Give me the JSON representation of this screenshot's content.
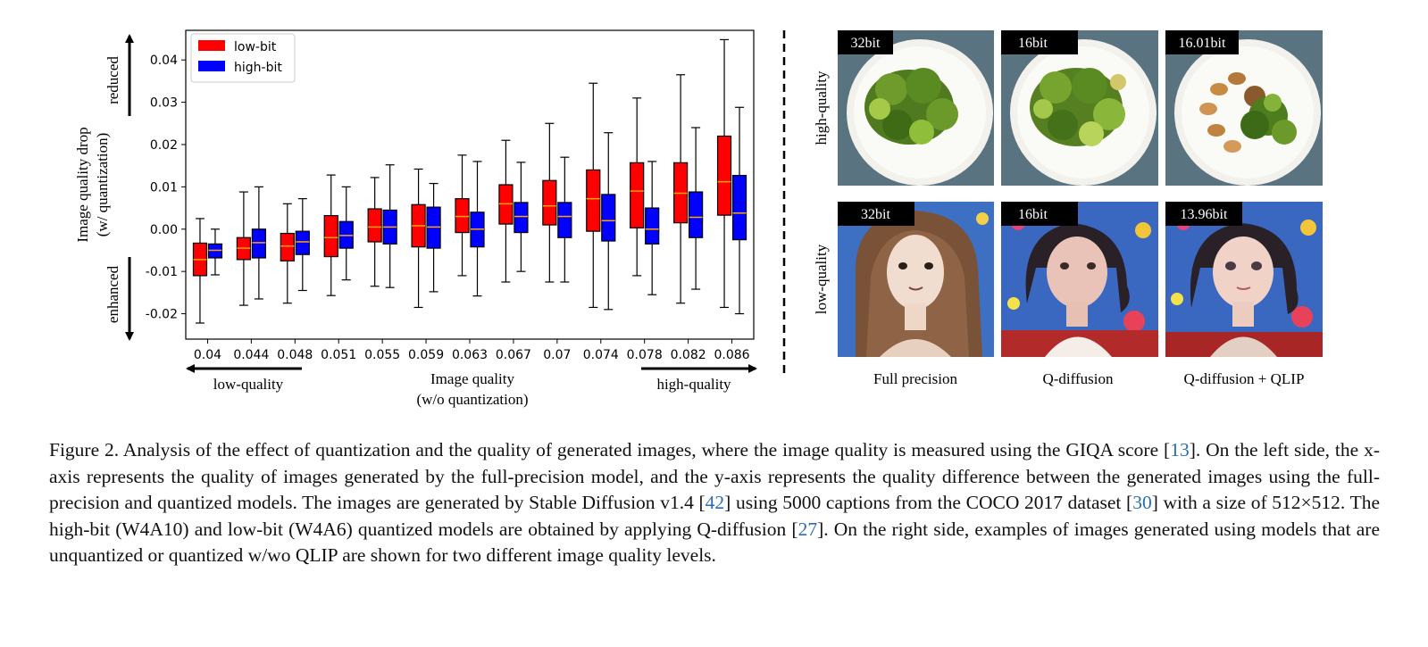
{
  "chart_data": {
    "type": "box",
    "categories": [
      "0.04",
      "0.044",
      "0.048",
      "0.051",
      "0.055",
      "0.059",
      "0.063",
      "0.067",
      "0.07",
      "0.074",
      "0.078",
      "0.082",
      "0.086"
    ],
    "ylim": [
      -0.026,
      0.047
    ],
    "yticks": [
      "0.04",
      "0.03",
      "0.02",
      "0.01",
      "0.00",
      "-0.01",
      "-0.02"
    ],
    "ytick_values": [
      0.04,
      0.03,
      0.02,
      0.01,
      0.0,
      -0.01,
      -0.02
    ],
    "xlabel_line1": "Image quality",
    "xlabel_line2": "(w/o quantization)",
    "ylabel_line1": "Image quality drop",
    "ylabel_line2": "(w/ quantization)",
    "x_low_label": "low-quality",
    "x_high_label": "high-quality",
    "y_up_label": "reduced",
    "y_down_label": "enhanced",
    "legend_placement": "top-left",
    "series": [
      {
        "name": "low-bit",
        "color": "#ff0000",
        "boxes": [
          {
            "whislo": -0.0222,
            "q1": -0.011,
            "med": -0.0072,
            "q3": -0.0033,
            "whishi": 0.0025
          },
          {
            "whislo": -0.018,
            "q1": -0.0072,
            "med": -0.0045,
            "q3": -0.002,
            "whishi": 0.0088
          },
          {
            "whislo": -0.0175,
            "q1": -0.0075,
            "med": -0.004,
            "q3": -0.001,
            "whishi": 0.006
          },
          {
            "whislo": -0.0157,
            "q1": -0.0065,
            "med": -0.002,
            "q3": 0.0032,
            "whishi": 0.0128
          },
          {
            "whislo": -0.0135,
            "q1": -0.003,
            "med": 0.0005,
            "q3": 0.0048,
            "whishi": 0.0122
          },
          {
            "whislo": -0.0185,
            "q1": -0.0042,
            "med": 0.0008,
            "q3": 0.0058,
            "whishi": 0.0142
          },
          {
            "whislo": -0.011,
            "q1": -0.0008,
            "med": 0.003,
            "q3": 0.0072,
            "whishi": 0.0175
          },
          {
            "whislo": -0.0125,
            "q1": 0.0012,
            "med": 0.006,
            "q3": 0.0105,
            "whishi": 0.021
          },
          {
            "whislo": -0.0125,
            "q1": 0.001,
            "med": 0.0055,
            "q3": 0.0115,
            "whishi": 0.025
          },
          {
            "whislo": -0.0185,
            "q1": -0.0005,
            "med": 0.0072,
            "q3": 0.014,
            "whishi": 0.0345
          },
          {
            "whislo": -0.011,
            "q1": 0.0003,
            "med": 0.009,
            "q3": 0.0157,
            "whishi": 0.031
          },
          {
            "whislo": -0.0175,
            "q1": 0.0015,
            "med": 0.0085,
            "q3": 0.0157,
            "whishi": 0.0365
          },
          {
            "whislo": -0.0185,
            "q1": 0.0033,
            "med": 0.0112,
            "q3": 0.022,
            "whishi": 0.0448
          }
        ]
      },
      {
        "name": "high-bit",
        "color": "#0000ff",
        "boxes": [
          {
            "whislo": -0.0108,
            "q1": -0.0068,
            "med": -0.005,
            "q3": -0.0035,
            "whishi": 0.0
          },
          {
            "whislo": -0.0165,
            "q1": -0.0068,
            "med": -0.0032,
            "q3": 0.0,
            "whishi": 0.01
          },
          {
            "whislo": -0.0145,
            "q1": -0.006,
            "med": -0.003,
            "q3": -0.0005,
            "whishi": 0.0072
          },
          {
            "whislo": -0.012,
            "q1": -0.0045,
            "med": -0.0015,
            "q3": 0.0018,
            "whishi": 0.01
          },
          {
            "whislo": -0.0138,
            "q1": -0.0035,
            "med": 0.0005,
            "q3": 0.0045,
            "whishi": 0.0152
          },
          {
            "whislo": -0.0148,
            "q1": -0.0045,
            "med": 0.0005,
            "q3": 0.0052,
            "whishi": 0.0108
          },
          {
            "whislo": -0.0158,
            "q1": -0.0042,
            "med": 0.0,
            "q3": 0.004,
            "whishi": 0.016
          },
          {
            "whislo": -0.01,
            "q1": -0.0008,
            "med": 0.003,
            "q3": 0.0063,
            "whishi": 0.0158
          },
          {
            "whislo": -0.0125,
            "q1": -0.002,
            "med": 0.003,
            "q3": 0.0063,
            "whishi": 0.017
          },
          {
            "whislo": -0.019,
            "q1": -0.0028,
            "med": 0.002,
            "q3": 0.0082,
            "whishi": 0.0228
          },
          {
            "whislo": -0.0155,
            "q1": -0.0035,
            "med": 0.0,
            "q3": 0.005,
            "whishi": 0.016
          },
          {
            "whislo": -0.0142,
            "q1": -0.002,
            "med": 0.0028,
            "q3": 0.0088,
            "whishi": 0.024
          },
          {
            "whislo": -0.02,
            "q1": -0.0025,
            "med": 0.0038,
            "q3": 0.0127,
            "whishi": 0.0288
          }
        ]
      }
    ]
  },
  "image_grid": {
    "row_labels": [
      "high-quality",
      "low-quality"
    ],
    "column_labels": [
      "Full precision",
      "Q-diffusion",
      "Q-diffusion + QLIP"
    ],
    "top_row_badges": [
      "32bit",
      "16bit",
      "16.01bit"
    ],
    "bottom_row_badges": [
      "32bit",
      "16bit",
      "13.96bit"
    ]
  },
  "caption": {
    "p1": "Figure 2. Analysis of the effect of quantization and the quality of generated images, where the image quality is measured using the GIQA score [",
    "r1": "13",
    "p2": "]. On the left side, the x-axis represents the quality of images generated by the full-precision model, and the y-axis represents the quality difference between the generated images using the full-precision and quantized models. The images are generated by Stable Diffusion v1.4 [",
    "r2": "42",
    "p3": "] using 5000 captions from the COCO 2017 dataset [",
    "r3": "30",
    "p4": "] with a size of 512×512. The high-bit (W4A10) and low-bit (W4A6) quantized models are obtained by applying Q-diffusion [",
    "r4": "27",
    "p5": "]. On the right side, examples of images generated using models that are unquantized or quantized w/wo QLIP are shown for two different image quality levels."
  }
}
